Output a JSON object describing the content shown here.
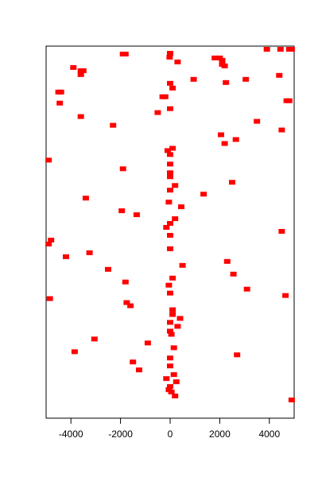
{
  "chart_data": {
    "type": "scatter",
    "title": "",
    "xlabel": "",
    "ylabel": "",
    "xlim": [
      -5000,
      5000
    ],
    "ylim": [
      0,
      470
    ],
    "x_ticks": [
      -4000,
      -2000,
      0,
      2000,
      4000
    ],
    "x_tick_labels": [
      "-4000",
      "-2000",
      "0",
      "2000",
      "4000"
    ],
    "y_ticks_shown": false,
    "grid": false,
    "legend": "none",
    "marker": "square",
    "color": "#ff0000",
    "points": [
      {
        "x": 3900,
        "y": 466
      },
      {
        "x": 4450,
        "y": 466
      },
      {
        "x": 4800,
        "y": 466
      },
      {
        "x": 4900,
        "y": 466
      },
      {
        "x": -1900,
        "y": 460
      },
      {
        "x": -1800,
        "y": 460
      },
      {
        "x": 0,
        "y": 461
      },
      {
        "x": -20,
        "y": 456
      },
      {
        "x": 1800,
        "y": 455
      },
      {
        "x": 2000,
        "y": 455
      },
      {
        "x": 2100,
        "y": 452
      },
      {
        "x": 300,
        "y": 450
      },
      {
        "x": 2100,
        "y": 447
      },
      {
        "x": 2200,
        "y": 445
      },
      {
        "x": -3900,
        "y": 443
      },
      {
        "x": -3600,
        "y": 439
      },
      {
        "x": -3500,
        "y": 439
      },
      {
        "x": -3600,
        "y": 434
      },
      {
        "x": 4400,
        "y": 433
      },
      {
        "x": 950,
        "y": 428
      },
      {
        "x": 3050,
        "y": 428
      },
      {
        "x": 0,
        "y": 423
      },
      {
        "x": 2250,
        "y": 424
      },
      {
        "x": 100,
        "y": 417
      },
      {
        "x": -4500,
        "y": 412
      },
      {
        "x": -4400,
        "y": 412
      },
      {
        "x": -300,
        "y": 406
      },
      {
        "x": -200,
        "y": 406
      },
      {
        "x": 4700,
        "y": 401
      },
      {
        "x": 4800,
        "y": 401
      },
      {
        "x": -4450,
        "y": 398
      },
      {
        "x": 0,
        "y": 391
      },
      {
        "x": -500,
        "y": 386
      },
      {
        "x": -3600,
        "y": 381
      },
      {
        "x": 3500,
        "y": 375
      },
      {
        "x": -2300,
        "y": 370
      },
      {
        "x": 4500,
        "y": 364
      },
      {
        "x": 2050,
        "y": 358
      },
      {
        "x": 2650,
        "y": 352
      },
      {
        "x": 2200,
        "y": 347
      },
      {
        "x": 100,
        "y": 341
      },
      {
        "x": -100,
        "y": 338
      },
      {
        "x": 0,
        "y": 333
      },
      {
        "x": -4900,
        "y": 326
      },
      {
        "x": 0,
        "y": 321
      },
      {
        "x": -1900,
        "y": 315
      },
      {
        "x": 0,
        "y": 310
      },
      {
        "x": 0,
        "y": 305
      },
      {
        "x": 2500,
        "y": 298
      },
      {
        "x": 200,
        "y": 294
      },
      {
        "x": 0,
        "y": 288
      },
      {
        "x": 1350,
        "y": 283
      },
      {
        "x": -3400,
        "y": 278
      },
      {
        "x": -50,
        "y": 273
      },
      {
        "x": 450,
        "y": 267
      },
      {
        "x": -1950,
        "y": 262
      },
      {
        "x": -1350,
        "y": 257
      },
      {
        "x": 200,
        "y": 252
      },
      {
        "x": 0,
        "y": 246
      },
      {
        "x": -150,
        "y": 241
      },
      {
        "x": 4500,
        "y": 236
      },
      {
        "x": 0,
        "y": 231
      },
      {
        "x": -4800,
        "y": 225
      },
      {
        "x": -4900,
        "y": 220
      },
      {
        "x": -3250,
        "y": 209
      },
      {
        "x": -4200,
        "y": 204
      },
      {
        "x": 0,
        "y": 214
      },
      {
        "x": 2300,
        "y": 198
      },
      {
        "x": 500,
        "y": 193
      },
      {
        "x": -2500,
        "y": 188
      },
      {
        "x": 2550,
        "y": 182
      },
      {
        "x": 100,
        "y": 177
      },
      {
        "x": -1800,
        "y": 172
      },
      {
        "x": -50,
        "y": 168
      },
      {
        "x": 3100,
        "y": 163
      },
      {
        "x": 0,
        "y": 158
      },
      {
        "x": 4650,
        "y": 155
      },
      {
        "x": -4850,
        "y": 151
      },
      {
        "x": -1750,
        "y": 146
      },
      {
        "x": -1600,
        "y": 142
      },
      {
        "x": 100,
        "y": 137
      },
      {
        "x": 100,
        "y": 131
      },
      {
        "x": 400,
        "y": 126
      },
      {
        "x": 0,
        "y": 121
      },
      {
        "x": 300,
        "y": 116
      },
      {
        "x": 0,
        "y": 110
      },
      {
        "x": 50,
        "y": 106
      },
      {
        "x": -3050,
        "y": 100
      },
      {
        "x": -900,
        "y": 95
      },
      {
        "x": 150,
        "y": 89
      },
      {
        "x": -3850,
        "y": 84
      },
      {
        "x": 2700,
        "y": 80
      },
      {
        "x": 0,
        "y": 76
      },
      {
        "x": -1500,
        "y": 71
      },
      {
        "x": 0,
        "y": 66
      },
      {
        "x": -1250,
        "y": 61
      },
      {
        "x": 150,
        "y": 55
      },
      {
        "x": -150,
        "y": 50
      },
      {
        "x": 250,
        "y": 46
      },
      {
        "x": 0,
        "y": 40
      },
      {
        "x": -50,
        "y": 36
      },
      {
        "x": 50,
        "y": 33
      },
      {
        "x": 200,
        "y": 28
      },
      {
        "x": 4900,
        "y": 23
      }
    ]
  }
}
